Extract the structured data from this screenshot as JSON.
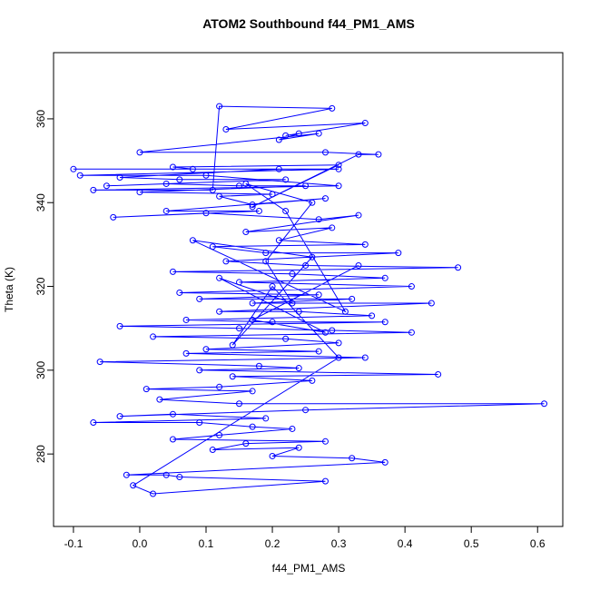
{
  "chart_data": {
    "type": "line",
    "title": "ATOM2 Southbound f44_PM1_AMS",
    "x_label": "f44_PM1_AMS",
    "y_label": "Theta (K)",
    "color": "blue",
    "x": [
      -0.1,
      0.3,
      -0.09,
      0.1,
      0.3,
      -0.07,
      0.11,
      0.12,
      0.29,
      0.13,
      0.34,
      0.22,
      0.24,
      0.21,
      0.27,
      0.0,
      0.28,
      0.36,
      0.33,
      0.17,
      0.3,
      0.05,
      0.08,
      0.21,
      -0.03,
      0.06,
      0.22,
      -0.05,
      0.04,
      0.15,
      0.25,
      0.0,
      0.2,
      0.12,
      0.17,
      0.28,
      0.04,
      0.18,
      -0.04,
      0.1,
      0.27,
      0.33,
      0.16,
      0.29,
      0.21,
      0.34,
      0.11,
      0.19,
      0.39,
      0.13,
      0.25,
      0.48,
      0.05,
      0.23,
      0.37,
      0.15,
      0.41,
      0.06,
      0.27,
      0.09,
      0.32,
      0.17,
      0.44,
      0.12,
      0.24,
      0.35,
      0.07,
      0.2,
      0.37,
      -0.03,
      0.15,
      0.29,
      0.41,
      0.02,
      0.22,
      0.3,
      0.1,
      0.27,
      0.07,
      0.34,
      -0.06,
      0.18,
      0.24,
      0.09,
      0.45,
      0.14,
      0.26,
      0.12,
      0.01,
      0.17,
      0.03,
      0.15,
      0.61,
      0.25,
      -0.03,
      0.05,
      0.19,
      -0.07,
      0.09,
      0.17,
      0.23,
      0.12,
      0.05,
      0.28,
      0.16,
      0.11,
      0.24,
      0.2,
      0.32,
      0.37,
      -0.02,
      0.04,
      0.06,
      0.28,
      0.02,
      -0.01,
      0.3,
      0.2,
      0.14,
      0.26,
      0.08,
      0.31,
      0.22,
      0.16,
      0.26,
      0.19,
      0.23,
      0.12,
      0.28,
      0.17,
      0.33
    ],
    "values": [
      348,
      348,
      346.5,
      346.5,
      344,
      343,
      343,
      363,
      362.5,
      357.5,
      359,
      356,
      356.5,
      355,
      356.5,
      352,
      352,
      351.5,
      351.5,
      339,
      349,
      348.5,
      348,
      348,
      346,
      345.5,
      345.5,
      344,
      344.5,
      344,
      344,
      342.5,
      342,
      341.5,
      339.5,
      341,
      338,
      338,
      336.5,
      337.5,
      336,
      337,
      333,
      334,
      331,
      330,
      329.5,
      328,
      328,
      326,
      325,
      324.5,
      323.5,
      323,
      322,
      321,
      320,
      318.5,
      318,
      317,
      317,
      316,
      316,
      314,
      314,
      313,
      312,
      311.5,
      311.5,
      310.5,
      310,
      309.5,
      309,
      308,
      307.5,
      306.5,
      305,
      304.5,
      304,
      303,
      302,
      301,
      300.5,
      300,
      299,
      298.5,
      297.5,
      296,
      295.5,
      295,
      293,
      292,
      292,
      290.5,
      289,
      289.5,
      288.5,
      287.5,
      287.5,
      286.5,
      286,
      284.5,
      283.5,
      283,
      282.5,
      281,
      281.5,
      279.5,
      279,
      278,
      275,
      275,
      274.5,
      273.5,
      270.5,
      272.5,
      303,
      320,
      306,
      327,
      331,
      314,
      338,
      344.5,
      340,
      326,
      316,
      322,
      309,
      312,
      325
    ],
    "xlim": [
      -0.13,
      0.638
    ],
    "ylim": [
      262.7,
      375.8
    ],
    "xticks": [
      -0.1,
      {
        "value": 0,
        "label": "0.0"
      },
      0.1,
      0.2,
      0.3,
      0.4,
      0.5,
      0.6
    ],
    "yticks": [
      280,
      300,
      320,
      340,
      360
    ]
  }
}
